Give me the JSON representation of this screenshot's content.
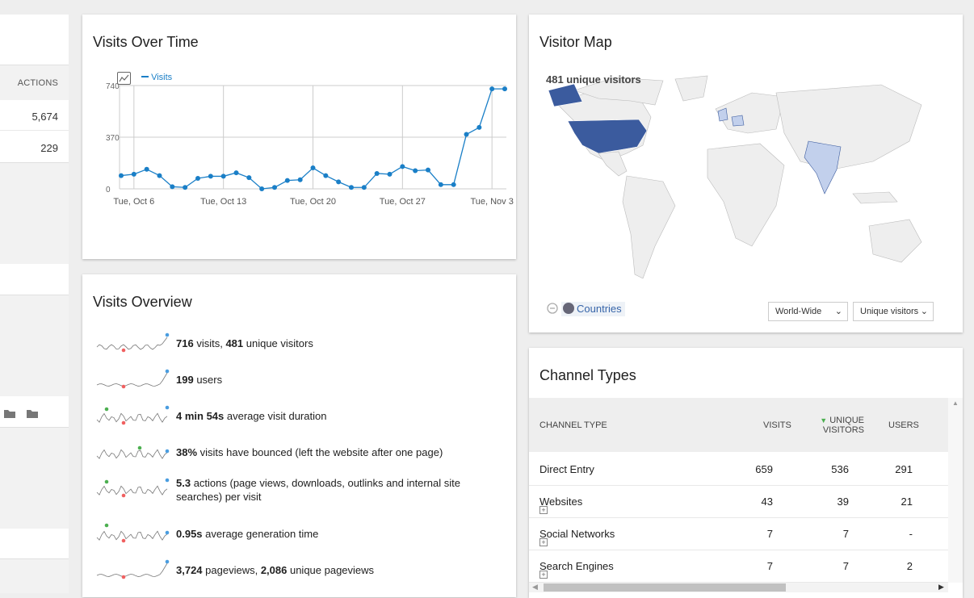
{
  "left_panel": {
    "actions_header": "ACTIONS",
    "rows": [
      "5,674",
      "229"
    ]
  },
  "visits_over_time": {
    "title": "Visits Over Time",
    "legend": "Visits",
    "y_ticks": [
      "740",
      "370",
      "0"
    ],
    "x_ticks": [
      "Tue, Oct 6",
      "Tue, Oct 13",
      "Tue, Oct 20",
      "Tue, Oct 27",
      "Tue, Nov 3"
    ],
    "series_color": "#1a7fc7"
  },
  "chart_data": {
    "type": "line",
    "title": "Visits Over Time",
    "xlabel": "",
    "ylabel": "",
    "ylim": [
      0,
      740
    ],
    "x": [
      "Oct 5",
      "Oct 6",
      "Oct 7",
      "Oct 8",
      "Oct 9",
      "Oct 10",
      "Oct 11",
      "Oct 12",
      "Oct 13",
      "Oct 14",
      "Oct 15",
      "Oct 16",
      "Oct 17",
      "Oct 18",
      "Oct 19",
      "Oct 20",
      "Oct 21",
      "Oct 22",
      "Oct 23",
      "Oct 24",
      "Oct 25",
      "Oct 26",
      "Oct 27",
      "Oct 28",
      "Oct 29",
      "Oct 30",
      "Oct 31",
      "Nov 1",
      "Nov 2",
      "Nov 3",
      "Nov 4"
    ],
    "series": [
      {
        "name": "Visits",
        "values": [
          95,
          105,
          140,
          95,
          15,
          10,
          75,
          90,
          90,
          115,
          80,
          0,
          10,
          60,
          65,
          150,
          95,
          50,
          10,
          10,
          110,
          105,
          160,
          130,
          135,
          30,
          30,
          390,
          440,
          716,
          716
        ]
      }
    ]
  },
  "visits_overview": {
    "title": "Visits Overview",
    "items": [
      {
        "v1": "716",
        "t1": " visits, ",
        "v2": "481",
        "t2": " unique visitors"
      },
      {
        "v1": "199",
        "t1": " users",
        "v2": "",
        "t2": ""
      },
      {
        "v1": "4 min 54s",
        "t1": " average visit duration",
        "v2": "",
        "t2": ""
      },
      {
        "v1": "38%",
        "t1": " visits have bounced (left the website after one page)",
        "v2": "",
        "t2": ""
      },
      {
        "v1": "5.3",
        "t1": " actions (page views, downloads, outlinks and internal site searches) per visit",
        "v2": "",
        "t2": ""
      },
      {
        "v1": "0.95s",
        "t1": " average generation time",
        "v2": "",
        "t2": ""
      },
      {
        "v1": "3,724",
        "t1": " pageviews, ",
        "v2": "2,086",
        "t2": " unique pageviews"
      }
    ]
  },
  "visitor_map": {
    "title": "Visitor Map",
    "summary": "481 unique visitors",
    "countries_link": "Countries",
    "region_select": "World-Wide",
    "metric_select": "Unique visitors",
    "highlight_color": "#3b5b9e",
    "light_color": "#c2d0ec"
  },
  "channel_types": {
    "title": "Channel Types",
    "headers": {
      "type": "CHANNEL TYPE",
      "visits": "VISITS",
      "unique1": "UNIQUE",
      "unique2": "VISITORS",
      "users": "USERS"
    },
    "rows": [
      {
        "name": "Direct Entry",
        "visits": "659",
        "unique": "536",
        "users": "291",
        "expandable": false
      },
      {
        "name": "Websites",
        "visits": "43",
        "unique": "39",
        "users": "21",
        "expandable": true
      },
      {
        "name": "Social Networks",
        "visits": "7",
        "unique": "7",
        "users": "-",
        "expandable": true
      },
      {
        "name": "Search Engines",
        "visits": "7",
        "unique": "7",
        "users": "2",
        "expandable": true
      }
    ]
  }
}
